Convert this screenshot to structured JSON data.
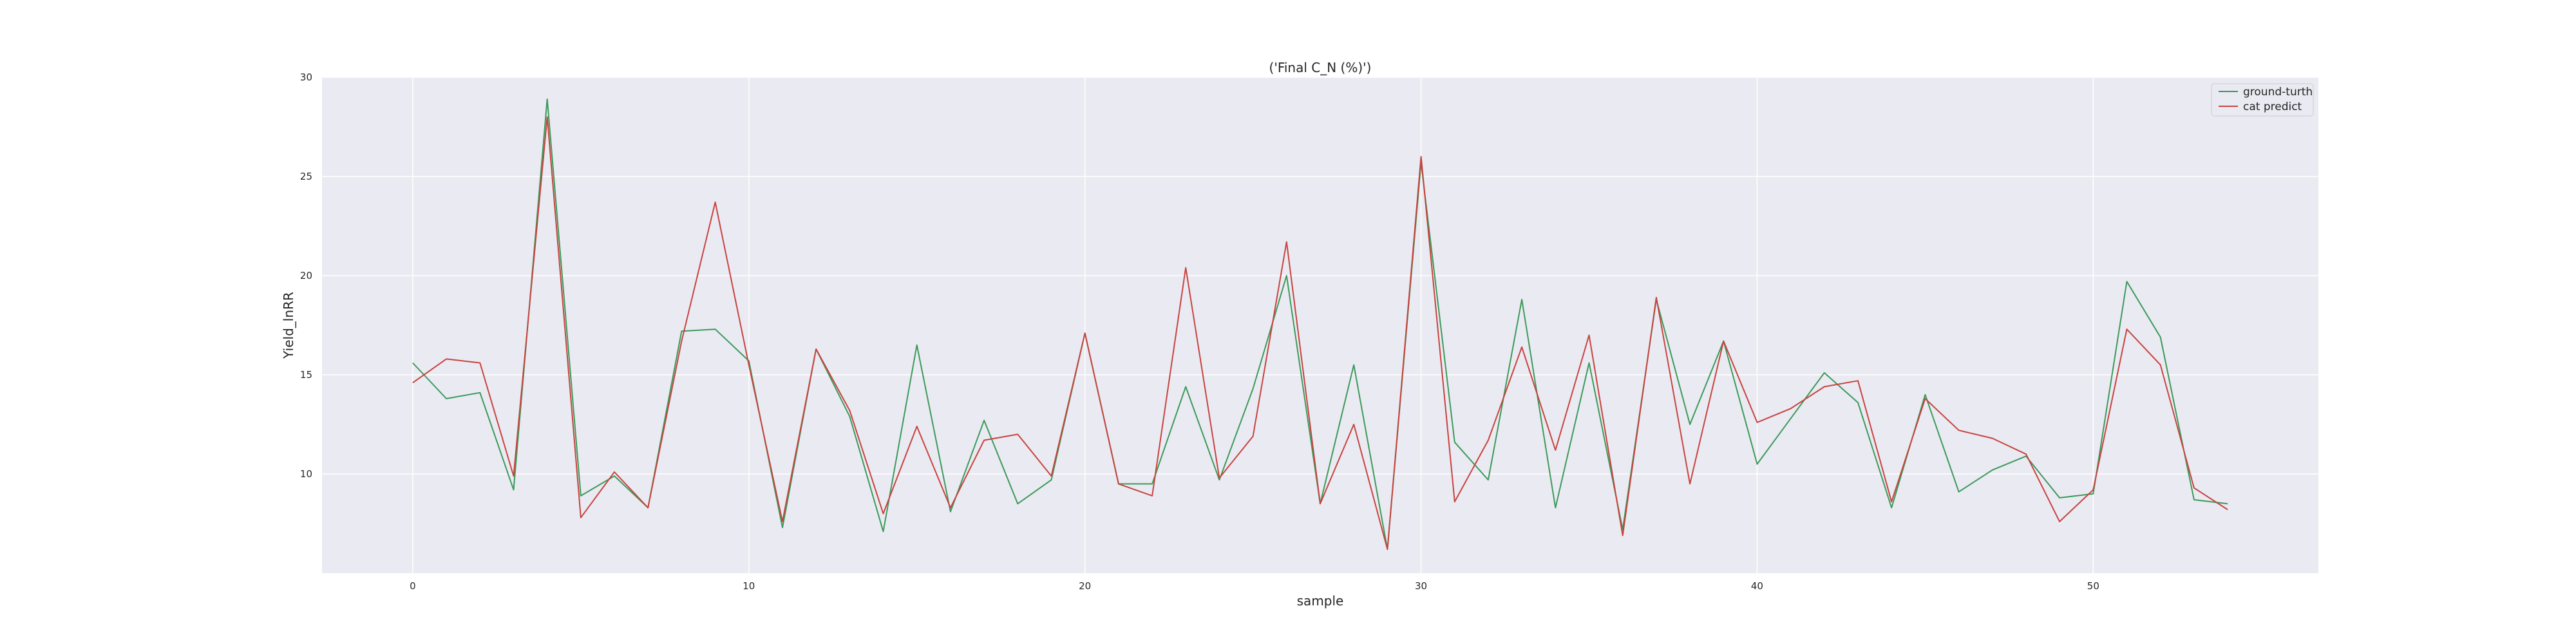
{
  "chart_data": {
    "type": "line",
    "title": "('Final C_N (%)')",
    "xlabel": "sample",
    "ylabel": "Yield_lnRR",
    "xlim": [
      -2.7,
      56.7
    ],
    "ylim": [
      5.0,
      30.0
    ],
    "xticks": [
      0,
      10,
      20,
      30,
      40,
      50
    ],
    "yticks": [
      10,
      15,
      20,
      25,
      30
    ],
    "grid": true,
    "legend_position": "top-right",
    "x": [
      0,
      1,
      2,
      3,
      4,
      5,
      6,
      7,
      8,
      9,
      10,
      11,
      12,
      13,
      14,
      15,
      16,
      17,
      18,
      19,
      20,
      21,
      22,
      23,
      24,
      25,
      26,
      27,
      28,
      29,
      30,
      31,
      32,
      33,
      34,
      35,
      36,
      37,
      38,
      39,
      40,
      41,
      42,
      43,
      44,
      45,
      46,
      47,
      48,
      49,
      50,
      51,
      52,
      53,
      54
    ],
    "series": [
      {
        "name": "ground-turth",
        "color": "#3b9a5a",
        "values": [
          15.6,
          13.8,
          14.1,
          9.2,
          28.9,
          8.9,
          9.9,
          8.3,
          17.2,
          17.3,
          15.7,
          7.3,
          16.3,
          12.9,
          7.1,
          16.5,
          8.1,
          12.7,
          8.5,
          9.7,
          17.1,
          9.5,
          9.5,
          14.4,
          9.7,
          14.3,
          20.0,
          8.5,
          15.5,
          6.2,
          25.7,
          11.6,
          9.7,
          18.8,
          8.3,
          15.6,
          7.2,
          18.8,
          12.5,
          16.7,
          10.5,
          12.8,
          15.1,
          13.6,
          8.3,
          14.0,
          9.1,
          10.2,
          10.9,
          8.8,
          9.0,
          19.7,
          16.9,
          8.7,
          8.5
        ]
      },
      {
        "name": "cat predict",
        "color": "#c8433f",
        "values": [
          14.6,
          15.8,
          15.6,
          9.9,
          28.0,
          7.8,
          10.1,
          8.3,
          16.7,
          23.7,
          15.5,
          7.6,
          16.3,
          13.2,
          8.0,
          12.4,
          8.3,
          11.7,
          12.0,
          9.9,
          17.1,
          9.5,
          8.9,
          20.4,
          9.8,
          11.9,
          21.7,
          8.5,
          12.5,
          6.2,
          26.0,
          8.6,
          11.7,
          16.4,
          11.2,
          17.0,
          6.9,
          18.9,
          9.5,
          16.7,
          12.6,
          13.3,
          14.4,
          14.7,
          8.6,
          13.8,
          12.2,
          11.8,
          11.0,
          7.6,
          9.2,
          17.3,
          15.5,
          9.3,
          8.2
        ]
      }
    ]
  }
}
